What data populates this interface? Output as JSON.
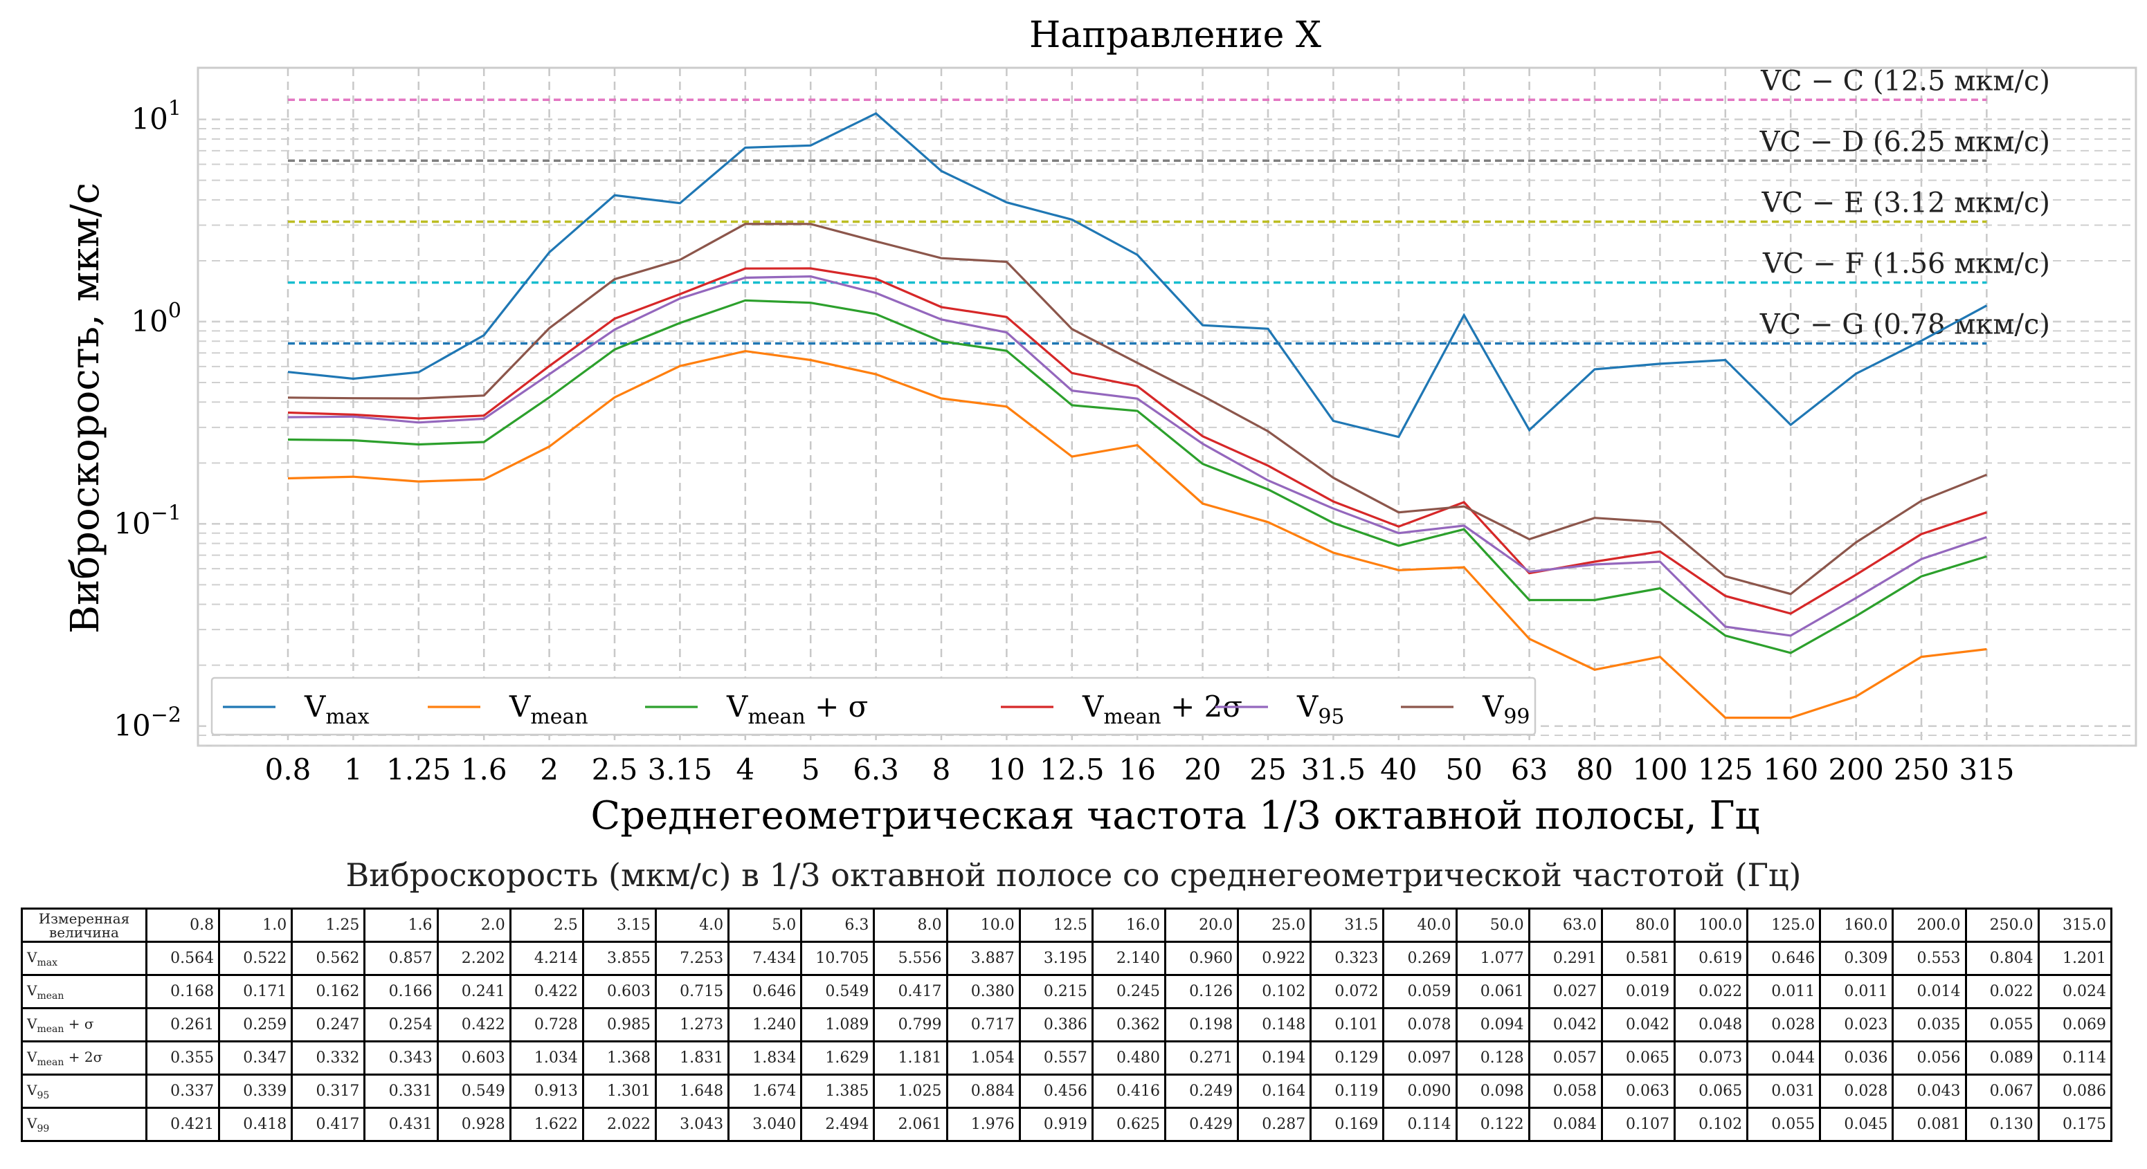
{
  "chart_data": {
    "type": "line",
    "title": "Направление X",
    "xlabel": "Среднегеометрическая частота 1/3 октавной полосы,  Гц",
    "ylabel": "Виброскорость,  мкм/с",
    "yscale": "log",
    "ylim": [
      0.008,
      18
    ],
    "categories": [
      "0.8",
      "1",
      "1.25",
      "1.6",
      "2",
      "2.5",
      "3.15",
      "4",
      "5",
      "6.3",
      "8",
      "10",
      "12.5",
      "16",
      "20",
      "25",
      "31.5",
      "40",
      "50",
      "63",
      "80",
      "100",
      "125",
      "160",
      "200",
      "250",
      "315"
    ],
    "series": [
      {
        "name": "V_max",
        "base": "V",
        "sub": "max",
        "sup": "",
        "color": "#1f77b4",
        "values": [
          0.564,
          0.522,
          0.562,
          0.857,
          2.202,
          4.214,
          3.855,
          7.253,
          7.434,
          10.705,
          5.556,
          3.887,
          3.195,
          2.14,
          0.96,
          0.922,
          0.323,
          0.269,
          1.077,
          0.291,
          0.581,
          0.619,
          0.646,
          0.309,
          0.553,
          0.804,
          1.201
        ]
      },
      {
        "name": "V_mean",
        "base": "V",
        "sub": "mean",
        "sup": "",
        "color": "#ff7f0e",
        "values": [
          0.168,
          0.171,
          0.162,
          0.166,
          0.241,
          0.422,
          0.603,
          0.715,
          0.646,
          0.549,
          0.417,
          0.38,
          0.215,
          0.245,
          0.126,
          0.102,
          0.072,
          0.059,
          0.061,
          0.027,
          0.019,
          0.022,
          0.011,
          0.011,
          0.014,
          0.022,
          0.024
        ]
      },
      {
        "name": "V_mean + σ",
        "base": "V",
        "sub": "mean",
        "sup": " + σ",
        "color": "#2ca02c",
        "values": [
          0.261,
          0.259,
          0.247,
          0.254,
          0.422,
          0.728,
          0.985,
          1.273,
          1.24,
          1.089,
          0.799,
          0.717,
          0.386,
          0.362,
          0.198,
          0.148,
          0.101,
          0.078,
          0.094,
          0.042,
          0.042,
          0.048,
          0.028,
          0.023,
          0.035,
          0.055,
          0.069
        ]
      },
      {
        "name": "V_mean + 2σ",
        "base": "V",
        "sub": "mean",
        "sup": " + 2σ",
        "color": "#d62728",
        "values": [
          0.355,
          0.347,
          0.332,
          0.343,
          0.603,
          1.034,
          1.368,
          1.831,
          1.834,
          1.629,
          1.181,
          1.054,
          0.557,
          0.48,
          0.271,
          0.194,
          0.129,
          0.097,
          0.128,
          0.057,
          0.065,
          0.073,
          0.044,
          0.036,
          0.056,
          0.089,
          0.114
        ]
      },
      {
        "name": "V_95",
        "base": "V",
        "sub": "95",
        "sup": "",
        "color": "#9467bd",
        "values": [
          0.337,
          0.339,
          0.317,
          0.331,
          0.549,
          0.913,
          1.301,
          1.648,
          1.674,
          1.385,
          1.025,
          0.884,
          0.456,
          0.416,
          0.249,
          0.164,
          0.119,
          0.09,
          0.098,
          0.058,
          0.063,
          0.065,
          0.031,
          0.028,
          0.043,
          0.067,
          0.086
        ]
      },
      {
        "name": "V_99",
        "base": "V",
        "sub": "99",
        "sup": "",
        "color": "#8c564b",
        "values": [
          0.421,
          0.418,
          0.417,
          0.431,
          0.928,
          1.622,
          2.022,
          3.043,
          3.04,
          2.494,
          2.061,
          1.976,
          0.919,
          0.625,
          0.429,
          0.287,
          0.169,
          0.114,
          0.122,
          0.084,
          0.107,
          0.102,
          0.055,
          0.045,
          0.081,
          0.13,
          0.175
        ]
      }
    ],
    "reference_lines": [
      {
        "label": "VC − C (12.5 мкм/с)",
        "value": 12.5,
        "color": "#e377c2"
      },
      {
        "label": "VC − D (6.25 мкм/с)",
        "value": 6.25,
        "color": "#7f7f7f"
      },
      {
        "label": "VC − E (3.12 мкм/с)",
        "value": 3.12,
        "color": "#bcbd22"
      },
      {
        "label": "VC − F (1.56 мкм/с)",
        "value": 1.56,
        "color": "#17becf"
      },
      {
        "label": "VC − G (0.78 мкм/с)",
        "value": 0.78,
        "color": "#1f77b4"
      }
    ],
    "ytick_labels": [
      "10",
      "10",
      "10"
    ],
    "ytick_exponents": [
      "1",
      "0",
      "−1",
      "−2"
    ],
    "legend_position": "lower-left",
    "grid": true
  },
  "table": {
    "title": "Виброскорость (мкм/с) в 1/3 октавной полосе со среднегеометрической частотой (Гц)",
    "header_label_line1": "Измеренная",
    "header_label_line2": "величина",
    "columns": [
      "0.8",
      "1.0",
      "1.25",
      "1.6",
      "2.0",
      "2.5",
      "3.15",
      "4.0",
      "5.0",
      "6.3",
      "8.0",
      "10.0",
      "12.5",
      "16.0",
      "20.0",
      "25.0",
      "31.5",
      "40.0",
      "50.0",
      "63.0",
      "80.0",
      "100.0",
      "125.0",
      "160.0",
      "200.0",
      "250.0",
      "315.0"
    ],
    "rows": [
      {
        "base": "V",
        "sub": "max",
        "sup": "",
        "cells": [
          "0.564",
          "0.522",
          "0.562",
          "0.857",
          "2.202",
          "4.214",
          "3.855",
          "7.253",
          "7.434",
          "10.705",
          "5.556",
          "3.887",
          "3.195",
          "2.140",
          "0.960",
          "0.922",
          "0.323",
          "0.269",
          "1.077",
          "0.291",
          "0.581",
          "0.619",
          "0.646",
          "0.309",
          "0.553",
          "0.804",
          "1.201"
        ]
      },
      {
        "base": "V",
        "sub": "mean",
        "sup": "",
        "cells": [
          "0.168",
          "0.171",
          "0.162",
          "0.166",
          "0.241",
          "0.422",
          "0.603",
          "0.715",
          "0.646",
          "0.549",
          "0.417",
          "0.380",
          "0.215",
          "0.245",
          "0.126",
          "0.102",
          "0.072",
          "0.059",
          "0.061",
          "0.027",
          "0.019",
          "0.022",
          "0.011",
          "0.011",
          "0.014",
          "0.022",
          "0.024"
        ]
      },
      {
        "base": "V",
        "sub": "mean",
        "sup": " + σ",
        "cells": [
          "0.261",
          "0.259",
          "0.247",
          "0.254",
          "0.422",
          "0.728",
          "0.985",
          "1.273",
          "1.240",
          "1.089",
          "0.799",
          "0.717",
          "0.386",
          "0.362",
          "0.198",
          "0.148",
          "0.101",
          "0.078",
          "0.094",
          "0.042",
          "0.042",
          "0.048",
          "0.028",
          "0.023",
          "0.035",
          "0.055",
          "0.069"
        ]
      },
      {
        "base": "V",
        "sub": "mean",
        "sup": " + 2σ",
        "cells": [
          "0.355",
          "0.347",
          "0.332",
          "0.343",
          "0.603",
          "1.034",
          "1.368",
          "1.831",
          "1.834",
          "1.629",
          "1.181",
          "1.054",
          "0.557",
          "0.480",
          "0.271",
          "0.194",
          "0.129",
          "0.097",
          "0.128",
          "0.057",
          "0.065",
          "0.073",
          "0.044",
          "0.036",
          "0.056",
          "0.089",
          "0.114"
        ]
      },
      {
        "base": "V",
        "sub": "95",
        "sup": "",
        "cells": [
          "0.337",
          "0.339",
          "0.317",
          "0.331",
          "0.549",
          "0.913",
          "1.301",
          "1.648",
          "1.674",
          "1.385",
          "1.025",
          "0.884",
          "0.456",
          "0.416",
          "0.249",
          "0.164",
          "0.119",
          "0.090",
          "0.098",
          "0.058",
          "0.063",
          "0.065",
          "0.031",
          "0.028",
          "0.043",
          "0.067",
          "0.086"
        ]
      },
      {
        "base": "V",
        "sub": "99",
        "sup": "",
        "cells": [
          "0.421",
          "0.418",
          "0.417",
          "0.431",
          "0.928",
          "1.622",
          "2.022",
          "3.043",
          "3.040",
          "2.494",
          "2.061",
          "1.976",
          "0.919",
          "0.625",
          "0.429",
          "0.287",
          "0.169",
          "0.114",
          "0.122",
          "0.084",
          "0.107",
          "0.102",
          "0.055",
          "0.045",
          "0.081",
          "0.130",
          "0.175"
        ]
      }
    ]
  }
}
